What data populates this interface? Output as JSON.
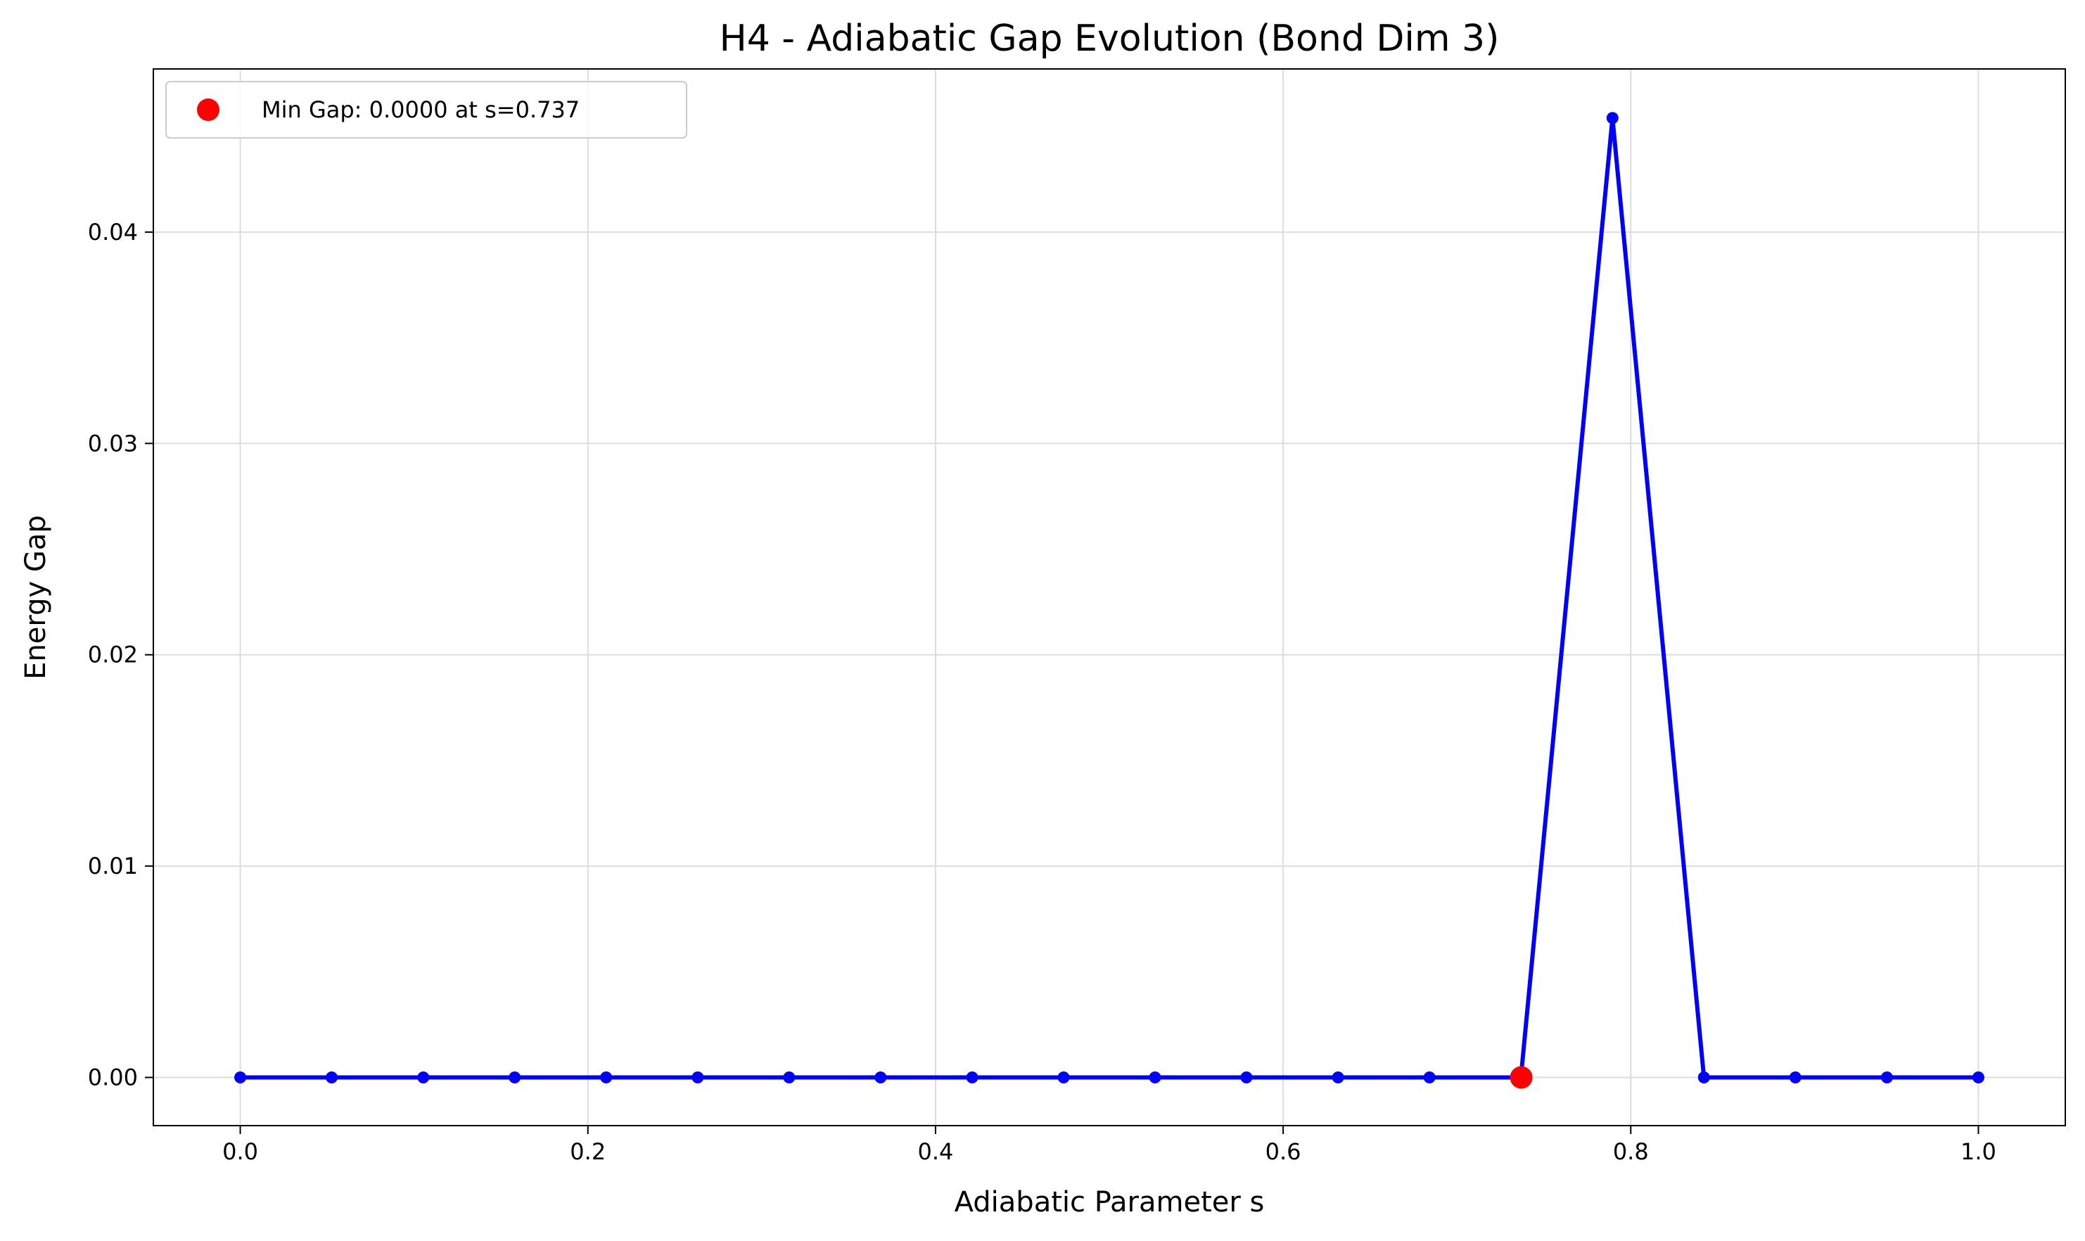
{
  "chart_data": {
    "type": "line",
    "title": "H4 - Adiabatic Gap Evolution (Bond Dim 3)",
    "xlabel": "Adiabatic Parameter s",
    "ylabel": "Energy Gap",
    "xlim": [
      -0.05,
      1.05
    ],
    "ylim": [
      -0.00228,
      0.04772
    ],
    "xticks": [
      0.0,
      0.2,
      0.4,
      0.6,
      0.8,
      1.0
    ],
    "xtick_labels": [
      "0.0",
      "0.2",
      "0.4",
      "0.6",
      "0.8",
      "1.0"
    ],
    "yticks": [
      0.0,
      0.01,
      0.02,
      0.03,
      0.04
    ],
    "ytick_labels": [
      "0.00",
      "0.01",
      "0.02",
      "0.03",
      "0.04"
    ],
    "grid": true,
    "legend_position": "top-left",
    "series": [
      {
        "color": "#0000ff",
        "marker": "circle",
        "x": [
          0.0,
          0.0526,
          0.1053,
          0.1579,
          0.2105,
          0.2632,
          0.3158,
          0.3684,
          0.4211,
          0.4737,
          0.5263,
          0.5789,
          0.6316,
          0.6842,
          0.7368,
          0.7895,
          0.8421,
          0.8947,
          0.9474,
          1.0
        ],
        "y": [
          0.0,
          0.0,
          0.0,
          0.0,
          0.0,
          0.0,
          0.0,
          0.0,
          0.0,
          0.0,
          0.0,
          0.0,
          0.0,
          0.0,
          0.0,
          0.0454,
          0.0,
          0.0,
          0.0,
          0.0
        ]
      }
    ],
    "highlight": {
      "name": "Min Gap: 0.0000 at s=0.737",
      "x": 0.737,
      "y": 0.0,
      "color": "#ff0000"
    }
  }
}
